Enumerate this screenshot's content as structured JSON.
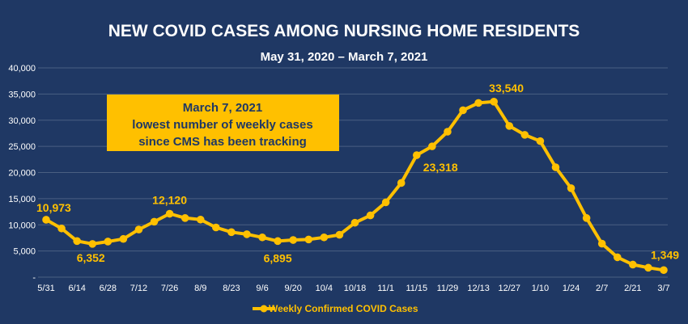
{
  "chart_data": {
    "type": "line",
    "title": "NEW COVID CASES AMONG NURSING HOME RESIDENTS",
    "subtitle": "May 31, 2020 – March 7, 2021",
    "xlabel": "",
    "ylabel": "",
    "ylim": [
      0,
      40000
    ],
    "yticks": [
      {
        "value": 0,
        "label": "-"
      },
      {
        "value": 5000,
        "label": "5,000"
      },
      {
        "value": 10000,
        "label": "10,000"
      },
      {
        "value": 15000,
        "label": "15,000"
      },
      {
        "value": 20000,
        "label": "20,000"
      },
      {
        "value": 25000,
        "label": "25,000"
      },
      {
        "value": 30000,
        "label": "30,000"
      },
      {
        "value": 35000,
        "label": "35,000"
      },
      {
        "value": 40000,
        "label": "40,000"
      }
    ],
    "x": [
      "5/31",
      "6/7",
      "6/14",
      "6/21",
      "6/28",
      "7/5",
      "7/12",
      "7/19",
      "7/26",
      "8/2",
      "8/9",
      "8/16",
      "8/23",
      "8/30",
      "9/6",
      "9/13",
      "9/20",
      "9/27",
      "10/4",
      "10/11",
      "10/18",
      "10/25",
      "11/1",
      "11/8",
      "11/15",
      "11/22",
      "11/29",
      "12/6",
      "12/13",
      "12/20",
      "12/27",
      "1/3",
      "1/10",
      "1/17",
      "1/24",
      "1/31",
      "2/7",
      "2/14",
      "2/21",
      "2/28",
      "3/7"
    ],
    "xticks": [
      "5/31",
      "6/14",
      "6/28",
      "7/12",
      "7/26",
      "8/9",
      "8/23",
      "9/6",
      "9/20",
      "10/4",
      "10/18",
      "11/1",
      "11/15",
      "11/29",
      "12/13",
      "12/27",
      "1/10",
      "1/24",
      "2/7",
      "2/21",
      "3/7"
    ],
    "grid": true,
    "legend_position": "bottom",
    "series": [
      {
        "name": "Weekly Confirmed COVID Cases",
        "color": "#ffc000",
        "values": [
          10973,
          9300,
          6900,
          6352,
          6800,
          7300,
          9100,
          10600,
          12120,
          11300,
          11000,
          9500,
          8600,
          8200,
          7600,
          6895,
          7100,
          7200,
          7600,
          8100,
          10400,
          11800,
          14300,
          18000,
          23318,
          25000,
          27800,
          31900,
          33300,
          33540,
          28900,
          27200,
          26000,
          21000,
          17000,
          11300,
          6400,
          3800,
          2400,
          1800,
          1349
        ]
      }
    ],
    "data_labels": [
      {
        "index": 0,
        "text": "10,973"
      },
      {
        "index": 3,
        "text": "6,352"
      },
      {
        "index": 8,
        "text": "12,120"
      },
      {
        "index": 15,
        "text": "6,895"
      },
      {
        "index": 24,
        "text": "23,318"
      },
      {
        "index": 29,
        "text": "33,540"
      },
      {
        "index": 40,
        "text": "1,349"
      }
    ],
    "annotation": {
      "lines": [
        "March 7, 2021",
        "lowest number of weekly cases",
        "since CMS has been tracking"
      ],
      "background": "#ffc000",
      "text_color": "#1f3864"
    },
    "colors": {
      "background": "#1f3864",
      "text": "#ffffff",
      "grid": "#4a5f82",
      "accent": "#ffc000"
    }
  }
}
